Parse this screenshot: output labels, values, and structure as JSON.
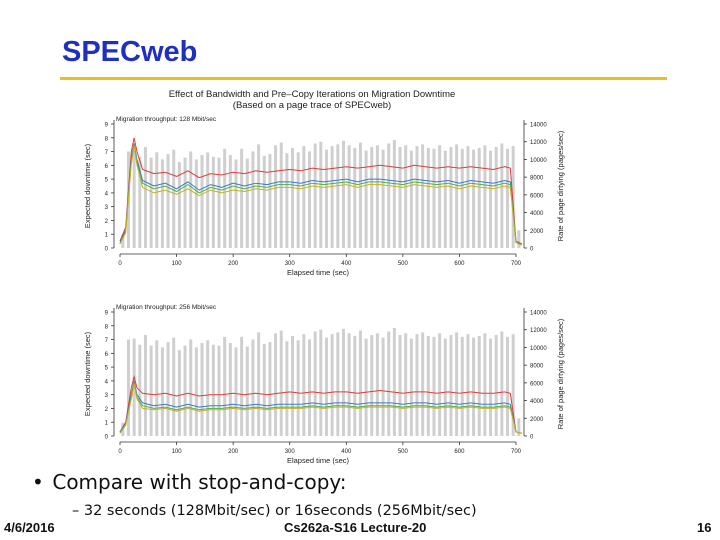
{
  "slide": {
    "title": "SPECweb",
    "bullet": "Compare with stop-and-copy:",
    "sub_bullet": "– 32 seconds (128Mbit/sec) or 16seconds (256Mbit/sec)",
    "footer_date": "4/6/2016",
    "footer_center": "Cs262a-S16 Lecture-20",
    "footer_page": "16"
  },
  "figure": {
    "title_line1": "Effect of Bandwidth and Pre–Copy Iterations on Migration Downtime",
    "title_line2": "(Based on a page trace of SPECweb)"
  },
  "chart_data": [
    {
      "type": "line",
      "panel_label": "Migration throughput: 128 Mbit/sec",
      "xlabel": "Elapsed time (sec)",
      "ylabel": "Expected downtime (sec)",
      "y2label": "Rate of page dirtying (pages/sec)",
      "xlim": [
        0,
        700
      ],
      "ylim": [
        0,
        9
      ],
      "y2lim": [
        0,
        14000
      ],
      "xticks": [
        "0",
        "100",
        "200",
        "300",
        "400",
        "500",
        "600",
        "700"
      ],
      "yticks": [
        "0",
        "1",
        "2",
        "3",
        "4",
        "5",
        "6",
        "7",
        "8",
        "9"
      ],
      "y2ticks": [
        "0",
        "2000",
        "4000",
        "6000",
        "8000",
        "10000",
        "12000",
        "14000"
      ],
      "bars": {
        "name": "Rate of page dirtying",
        "color": "#cfcfcf",
        "x_start": 5,
        "x_step": 10,
        "values": [
          1500,
          10900,
          11000,
          10300,
          11400,
          10200,
          10800,
          10000,
          10600,
          11100,
          9700,
          10200,
          10900,
          10000,
          10500,
          10800,
          10300,
          10200,
          11200,
          10500,
          10000,
          11200,
          10100,
          10900,
          11700,
          10400,
          10600,
          11600,
          11900,
          10700,
          11300,
          10800,
          11500,
          10900,
          11800,
          12000,
          11100,
          11500,
          11700,
          12100,
          11600,
          11300,
          11900,
          11000,
          11400,
          11600,
          11100,
          11800,
          12200,
          11400,
          11600,
          11000,
          11500,
          11700,
          11300,
          11200,
          11600,
          11000,
          11400,
          11700,
          11200,
          11500,
          11100,
          11300,
          11600,
          11000,
          11400,
          11800,
          11200,
          11500,
          2000
        ]
      },
      "series": [
        {
          "name": "red",
          "color": "#e03a3a",
          "x": [
            0,
            10,
            20,
            25,
            30,
            40,
            60,
            80,
            100,
            120,
            140,
            160,
            180,
            200,
            220,
            240,
            260,
            280,
            300,
            320,
            340,
            360,
            380,
            400,
            420,
            440,
            460,
            480,
            500,
            520,
            540,
            560,
            580,
            600,
            620,
            640,
            660,
            680,
            690,
            700,
            710
          ],
          "y": [
            0.5,
            1.5,
            7.0,
            8.0,
            7.0,
            5.7,
            5.4,
            5.5,
            5.2,
            5.6,
            5.1,
            5.4,
            5.3,
            5.5,
            5.4,
            5.6,
            5.5,
            5.6,
            5.7,
            5.6,
            5.8,
            5.7,
            5.8,
            5.9,
            5.8,
            5.9,
            6.0,
            5.9,
            5.8,
            6.0,
            5.9,
            5.8,
            5.9,
            5.8,
            5.9,
            5.8,
            5.7,
            5.9,
            5.8,
            0.5,
            0.3
          ]
        },
        {
          "name": "blue",
          "color": "#3a78c8",
          "x": [
            0,
            10,
            20,
            25,
            30,
            40,
            60,
            80,
            100,
            120,
            140,
            160,
            180,
            200,
            220,
            240,
            260,
            280,
            300,
            320,
            340,
            360,
            380,
            400,
            420,
            440,
            460,
            480,
            500,
            520,
            540,
            560,
            580,
            600,
            620,
            640,
            660,
            680,
            690,
            700,
            710
          ],
          "y": [
            0.4,
            1.3,
            6.5,
            7.6,
            6.4,
            4.9,
            4.5,
            4.7,
            4.3,
            4.8,
            4.2,
            4.6,
            4.4,
            4.7,
            4.5,
            4.7,
            4.6,
            4.8,
            4.8,
            4.7,
            4.9,
            4.8,
            4.9,
            5.0,
            4.8,
            5.0,
            5.0,
            4.9,
            4.8,
            5.0,
            4.9,
            4.8,
            4.9,
            4.7,
            4.9,
            4.8,
            4.7,
            4.9,
            4.8,
            0.4,
            0.3
          ]
        },
        {
          "name": "green",
          "color": "#4cb04c",
          "x": [
            0,
            10,
            20,
            25,
            30,
            40,
            60,
            80,
            100,
            120,
            140,
            160,
            180,
            200,
            220,
            240,
            260,
            280,
            300,
            320,
            340,
            360,
            380,
            400,
            420,
            440,
            460,
            480,
            500,
            520,
            540,
            560,
            580,
            600,
            620,
            640,
            660,
            680,
            690,
            700,
            710
          ],
          "y": [
            0.3,
            1.2,
            6.3,
            7.5,
            6.2,
            4.7,
            4.3,
            4.5,
            4.1,
            4.6,
            4.0,
            4.4,
            4.2,
            4.5,
            4.3,
            4.5,
            4.4,
            4.6,
            4.6,
            4.5,
            4.7,
            4.6,
            4.7,
            4.8,
            4.6,
            4.8,
            4.8,
            4.7,
            4.6,
            4.8,
            4.7,
            4.6,
            4.7,
            4.5,
            4.7,
            4.6,
            4.5,
            4.7,
            4.6,
            0.4,
            0.2
          ]
        },
        {
          "name": "yellow",
          "color": "#c8b020",
          "x": [
            0,
            10,
            20,
            25,
            30,
            40,
            60,
            80,
            100,
            120,
            140,
            160,
            180,
            200,
            220,
            240,
            260,
            280,
            300,
            320,
            340,
            360,
            380,
            400,
            420,
            440,
            460,
            480,
            500,
            520,
            540,
            560,
            580,
            600,
            620,
            640,
            660,
            680,
            690,
            700,
            710
          ],
          "y": [
            0.3,
            1.1,
            6.1,
            7.4,
            6.0,
            4.4,
            4.0,
            4.2,
            3.9,
            4.3,
            3.8,
            4.2,
            4.0,
            4.2,
            4.1,
            4.3,
            4.2,
            4.4,
            4.4,
            4.3,
            4.5,
            4.4,
            4.5,
            4.6,
            4.4,
            4.6,
            4.6,
            4.5,
            4.4,
            4.6,
            4.5,
            4.4,
            4.5,
            4.3,
            4.5,
            4.4,
            4.3,
            4.5,
            4.4,
            0.4,
            0.2
          ]
        }
      ]
    },
    {
      "type": "line",
      "panel_label": "Migration throughput: 256 Mbit/sec",
      "xlabel": "Elapsed time (sec)",
      "ylabel": "Expected downtime (sec)",
      "y2label": "Rate of page dirtying (pages/sec)",
      "xlim": [
        0,
        700
      ],
      "ylim": [
        0,
        9
      ],
      "y2lim": [
        0,
        14000
      ],
      "xticks": [
        "0",
        "100",
        "200",
        "300",
        "400",
        "500",
        "600",
        "700"
      ],
      "yticks": [
        "0",
        "1",
        "2",
        "3",
        "4",
        "5",
        "6",
        "7",
        "8",
        "9"
      ],
      "y2ticks": [
        "0",
        "2000",
        "4000",
        "6000",
        "8000",
        "10000",
        "12000",
        "14000"
      ],
      "bars": {
        "name": "Rate of page dirtying",
        "color": "#cfcfcf",
        "x_start": 5,
        "x_step": 10,
        "values": [
          1500,
          10900,
          11000,
          10300,
          11400,
          10200,
          10800,
          10000,
          10600,
          11100,
          9700,
          10200,
          10900,
          10000,
          10500,
          10800,
          10300,
          10200,
          11200,
          10500,
          10000,
          11200,
          10100,
          10900,
          11700,
          10400,
          10600,
          11600,
          11900,
          10700,
          11300,
          10800,
          11500,
          10900,
          11800,
          12000,
          11100,
          11500,
          11700,
          12100,
          11600,
          11300,
          11900,
          11000,
          11400,
          11600,
          11100,
          11800,
          12200,
          11400,
          11600,
          11000,
          11500,
          11700,
          11300,
          11200,
          11600,
          11000,
          11400,
          11700,
          11200,
          11500,
          11100,
          11300,
          11600,
          11000,
          11400,
          11800,
          11200,
          11500,
          2000
        ]
      },
      "series": [
        {
          "name": "red",
          "color": "#e03a3a",
          "x": [
            0,
            10,
            20,
            25,
            30,
            40,
            60,
            80,
            100,
            120,
            140,
            160,
            180,
            200,
            220,
            240,
            260,
            280,
            300,
            320,
            340,
            360,
            380,
            400,
            420,
            440,
            460,
            480,
            500,
            520,
            540,
            560,
            580,
            600,
            620,
            640,
            660,
            680,
            690,
            700,
            710
          ],
          "y": [
            0.3,
            1.0,
            3.5,
            4.3,
            3.5,
            3.1,
            3.0,
            3.1,
            2.9,
            3.1,
            2.9,
            3.0,
            3.0,
            3.1,
            3.0,
            3.1,
            3.0,
            3.1,
            3.2,
            3.1,
            3.2,
            3.1,
            3.2,
            3.2,
            3.1,
            3.2,
            3.3,
            3.2,
            3.1,
            3.2,
            3.2,
            3.1,
            3.2,
            3.1,
            3.2,
            3.1,
            3.1,
            3.2,
            3.1,
            0.3,
            0.2
          ]
        },
        {
          "name": "blue",
          "color": "#3a78c8",
          "x": [
            0,
            10,
            20,
            25,
            30,
            40,
            60,
            80,
            100,
            120,
            140,
            160,
            180,
            200,
            220,
            240,
            260,
            280,
            300,
            320,
            340,
            360,
            380,
            400,
            420,
            440,
            460,
            480,
            500,
            520,
            540,
            560,
            580,
            600,
            620,
            640,
            660,
            680,
            690,
            700,
            710
          ],
          "y": [
            0.3,
            0.9,
            3.0,
            4.0,
            3.0,
            2.4,
            2.2,
            2.3,
            2.1,
            2.3,
            2.1,
            2.2,
            2.2,
            2.3,
            2.2,
            2.3,
            2.2,
            2.3,
            2.3,
            2.3,
            2.4,
            2.3,
            2.4,
            2.4,
            2.3,
            2.4,
            2.4,
            2.4,
            2.3,
            2.4,
            2.4,
            2.3,
            2.4,
            2.3,
            2.4,
            2.3,
            2.3,
            2.4,
            2.3,
            0.3,
            0.2
          ]
        },
        {
          "name": "green",
          "color": "#4cb04c",
          "x": [
            0,
            10,
            20,
            25,
            30,
            40,
            60,
            80,
            100,
            120,
            140,
            160,
            180,
            200,
            220,
            240,
            260,
            280,
            300,
            320,
            340,
            360,
            380,
            400,
            420,
            440,
            460,
            480,
            500,
            520,
            540,
            560,
            580,
            600,
            620,
            640,
            660,
            680,
            690,
            700,
            710
          ],
          "y": [
            0.2,
            0.8,
            2.8,
            3.9,
            2.8,
            2.2,
            2.0,
            2.1,
            1.9,
            2.1,
            1.9,
            2.0,
            2.0,
            2.1,
            2.0,
            2.1,
            2.0,
            2.1,
            2.1,
            2.1,
            2.2,
            2.1,
            2.2,
            2.2,
            2.1,
            2.2,
            2.2,
            2.2,
            2.1,
            2.2,
            2.2,
            2.1,
            2.2,
            2.1,
            2.2,
            2.1,
            2.1,
            2.2,
            2.1,
            0.3,
            0.2
          ]
        },
        {
          "name": "yellow",
          "color": "#c8b020",
          "x": [
            0,
            10,
            20,
            25,
            30,
            40,
            60,
            80,
            100,
            120,
            140,
            160,
            180,
            200,
            220,
            240,
            260,
            280,
            300,
            320,
            340,
            360,
            380,
            400,
            420,
            440,
            460,
            480,
            500,
            520,
            540,
            560,
            580,
            600,
            620,
            640,
            660,
            680,
            690,
            700,
            710
          ],
          "y": [
            0.2,
            0.8,
            2.7,
            3.8,
            2.7,
            2.0,
            1.9,
            2.0,
            1.8,
            2.0,
            1.8,
            1.9,
            1.9,
            2.0,
            1.9,
            2.0,
            1.9,
            2.0,
            2.0,
            2.0,
            2.1,
            2.0,
            2.1,
            2.1,
            2.0,
            2.1,
            2.1,
            2.1,
            2.0,
            2.1,
            2.1,
            2.0,
            2.1,
            2.0,
            2.1,
            2.0,
            2.0,
            2.1,
            2.0,
            0.3,
            0.2
          ]
        }
      ]
    }
  ]
}
